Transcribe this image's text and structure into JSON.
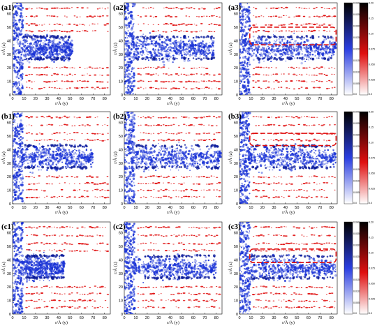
{
  "figure": {
    "axes": {
      "xlabel": "r/Å (y)",
      "ylabel": "r/Å (z)",
      "xticks": [
        "0",
        "10",
        "20",
        "30",
        "40",
        "50",
        "60",
        "70",
        "80"
      ],
      "yticks": [
        "0",
        "10",
        "20",
        "30",
        "40",
        "50",
        "60"
      ],
      "xrange": [
        0,
        85
      ],
      "yrange": [
        0,
        68
      ]
    },
    "colors": {
      "water_density": "#1a33d6",
      "ion_density": "#e01010",
      "highlight_box": "#e01010"
    },
    "panels": [
      {
        "label": "(a1)",
        "rows": [
          "a"
        ],
        "col": 1,
        "water_extent_y": 52,
        "highlight": false
      },
      {
        "label": "(a2)",
        "col": 2,
        "water_extent_y": 78,
        "highlight": false
      },
      {
        "label": "(a3)",
        "col": 3,
        "water_extent_y": 84,
        "highlight": true,
        "highlight_z": [
          37,
          50
        ]
      },
      {
        "label": "(b1)",
        "col": 1,
        "water_extent_y": 70,
        "highlight": false
      },
      {
        "label": "(b2)",
        "col": 2,
        "water_extent_y": 84,
        "highlight": false
      },
      {
        "label": "(b3)",
        "col": 3,
        "water_extent_y": 84,
        "highlight": true,
        "highlight_z": [
          43,
          52
        ]
      },
      {
        "label": "(c1)",
        "col": 1,
        "water_extent_y": 45,
        "highlight": false
      },
      {
        "label": "(c2)",
        "col": 2,
        "water_extent_y": 80,
        "highlight": false
      },
      {
        "label": "(c3)",
        "col": 3,
        "water_extent_y": 84,
        "highlight": true,
        "highlight_z": [
          38,
          48
        ]
      }
    ],
    "colorbars": [
      {
        "row": "a",
        "blue_ticks": [
          "0.040",
          "0.035",
          "0.030",
          "0.025",
          "0.020",
          "0.015",
          "0.010",
          "0.005",
          "0.0"
        ],
        "red_ticks": [
          "0.20",
          "0.15",
          "0.10",
          "0.075",
          "0.050",
          "0.025",
          "0.0"
        ]
      },
      {
        "row": "b",
        "blue_ticks": [
          "0.040",
          "0.035",
          "0.030",
          "0.025",
          "0.020",
          "0.015",
          "0.010",
          "0.005",
          "0.0"
        ],
        "red_ticks": [
          "0.20",
          "0.15",
          "0.10",
          "0.075",
          "0.050",
          "0.025",
          "0.0"
        ]
      },
      {
        "row": "c",
        "blue_ticks": [
          "0.040",
          "0.035",
          "0.030",
          "0.025",
          "0.020",
          "0.015",
          "0.010",
          "0.005",
          "0.0"
        ],
        "red_ticks": [
          "0.20",
          "0.15",
          "0.10",
          "0.075",
          "0.050",
          "0.025",
          "0.0"
        ]
      }
    ]
  }
}
